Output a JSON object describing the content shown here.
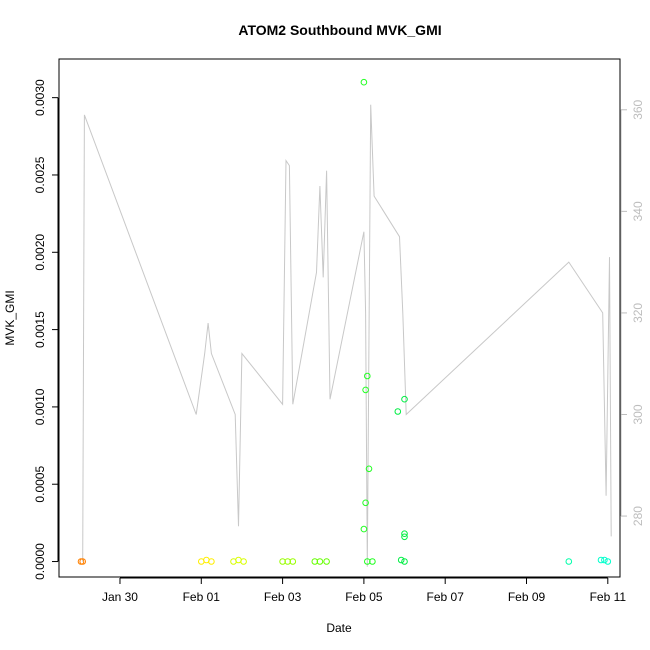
{
  "chart_data": {
    "type": "scatter",
    "title": "ATOM2 Southbound MVK_GMI",
    "xlabel": "Date",
    "ylabel": "MVK_GMI",
    "x_ticks": [
      "Jan 30",
      "Feb 01",
      "Feb 03",
      "Feb 05",
      "Feb 07",
      "Feb 09",
      "Feb 11"
    ],
    "y_ticks": [
      "0.0000",
      "0.0005",
      "0.0010",
      "0.0015",
      "0.0020",
      "0.0025",
      "0.0030"
    ],
    "y_right_ticks": [
      "280",
      "300",
      "320",
      "340",
      "360"
    ],
    "xlim_days_from_jan30": [
      -1.5,
      12.3
    ],
    "ylim": [
      -0.0001,
      0.00325
    ],
    "y_right_lim": [
      268,
      370
    ],
    "grid": false,
    "points_mvk_gmi": [
      {
        "x": "2016-01-29 01:00",
        "y": 0.0,
        "color": "#ff8000"
      },
      {
        "x": "2016-01-29 02:00",
        "y": 0.0,
        "color": "#ff8000"
      },
      {
        "x": "2016-02-01 00:00",
        "y": 0.0,
        "color": "#ffee00"
      },
      {
        "x": "2016-02-01 03:00",
        "y": 1e-05,
        "color": "#ffee00"
      },
      {
        "x": "2016-02-01 06:00",
        "y": 0.0,
        "color": "#ffee00"
      },
      {
        "x": "2016-02-01 19:00",
        "y": 0.0,
        "color": "#d9ff00"
      },
      {
        "x": "2016-02-01 22:00",
        "y": 1e-05,
        "color": "#d9ff00"
      },
      {
        "x": "2016-02-02 01:00",
        "y": 0.0,
        "color": "#d9ff00"
      },
      {
        "x": "2016-02-03 00:00",
        "y": 0.0,
        "color": "#99ff00"
      },
      {
        "x": "2016-02-03 03:00",
        "y": 0.0,
        "color": "#99ff00"
      },
      {
        "x": "2016-02-03 06:00",
        "y": 0.0,
        "color": "#99ff00"
      },
      {
        "x": "2016-02-03 19:00",
        "y": 0.0,
        "color": "#66ff00"
      },
      {
        "x": "2016-02-03 22:00",
        "y": 0.0,
        "color": "#66ff00"
      },
      {
        "x": "2016-02-04 02:00",
        "y": 0.0,
        "color": "#66ff00"
      },
      {
        "x": "2016-02-05 00:00",
        "y": 0.0031,
        "color": "#22ff22"
      },
      {
        "x": "2016-02-05 02:00",
        "y": 0.0012,
        "color": "#22ff22"
      },
      {
        "x": "2016-02-05 01:00",
        "y": 0.00111,
        "color": "#22ff22"
      },
      {
        "x": "2016-02-05 03:00",
        "y": 0.0006,
        "color": "#22ff22"
      },
      {
        "x": "2016-02-05 01:00",
        "y": 0.00038,
        "color": "#22ff22"
      },
      {
        "x": "2016-02-05 00:00",
        "y": 0.00021,
        "color": "#22ff22"
      },
      {
        "x": "2016-02-05 02:00",
        "y": 0.0,
        "color": "#22ff22"
      },
      {
        "x": "2016-02-05 05:00",
        "y": 0.0,
        "color": "#22ff22"
      },
      {
        "x": "2016-02-05 20:00",
        "y": 0.00097,
        "color": "#00ee44"
      },
      {
        "x": "2016-02-06 00:00",
        "y": 0.00105,
        "color": "#00ee44"
      },
      {
        "x": "2016-02-06 00:00",
        "y": 0.00016,
        "color": "#00ee44"
      },
      {
        "x": "2016-02-06 00:00",
        "y": 0.00018,
        "color": "#00ee44"
      },
      {
        "x": "2016-02-05 22:00",
        "y": 1e-05,
        "color": "#00ee44"
      },
      {
        "x": "2016-02-06 00:00",
        "y": 0.0,
        "color": "#00ee44"
      },
      {
        "x": "2016-02-10 01:00",
        "y": 0.0,
        "color": "#00ffaa"
      },
      {
        "x": "2016-02-10 20:00",
        "y": 1e-05,
        "color": "#00ffcc"
      },
      {
        "x": "2016-02-10 22:00",
        "y": 1e-05,
        "color": "#00ffcc"
      },
      {
        "x": "2016-02-11 00:00",
        "y": 0.0,
        "color": "#00ffcc"
      }
    ],
    "line_right_axis": {
      "color": "#c8c8c8",
      "points": [
        [
          "2016-01-29 02:00",
          271
        ],
        [
          "2016-01-29 03:00",
          359
        ],
        [
          "2016-01-31 21:00",
          300
        ],
        [
          "2016-02-01 02:00",
          312
        ],
        [
          "2016-02-01 04:00",
          318
        ],
        [
          "2016-02-01 06:00",
          312
        ],
        [
          "2016-02-01 20:00",
          300
        ],
        [
          "2016-02-01 22:00",
          278
        ],
        [
          "2016-02-02 00:00",
          312
        ],
        [
          "2016-02-03 00:00",
          302
        ],
        [
          "2016-02-03 02:00",
          350
        ],
        [
          "2016-02-03 04:00",
          349
        ],
        [
          "2016-02-03 06:00",
          302
        ],
        [
          "2016-02-03 20:00",
          328
        ],
        [
          "2016-02-03 22:00",
          345
        ],
        [
          "2016-02-04 00:00",
          327
        ],
        [
          "2016-02-04 02:00",
          348
        ],
        [
          "2016-02-04 04:00",
          303
        ],
        [
          "2016-02-05 00:00",
          336
        ],
        [
          "2016-02-05 01:00",
          320
        ],
        [
          "2016-02-05 02:00",
          270
        ],
        [
          "2016-02-05 04:00",
          361
        ],
        [
          "2016-02-05 06:00",
          343
        ],
        [
          "2016-02-05 21:00",
          335
        ],
        [
          "2016-02-05 23:00",
          320
        ],
        [
          "2016-02-06 01:00",
          300
        ],
        [
          "2016-02-10 01:00",
          330
        ],
        [
          "2016-02-10 21:00",
          320
        ],
        [
          "2016-02-10 23:00",
          284
        ],
        [
          "2016-02-11 01:00",
          331
        ],
        [
          "2016-02-11 02:00",
          276
        ]
      ]
    }
  }
}
